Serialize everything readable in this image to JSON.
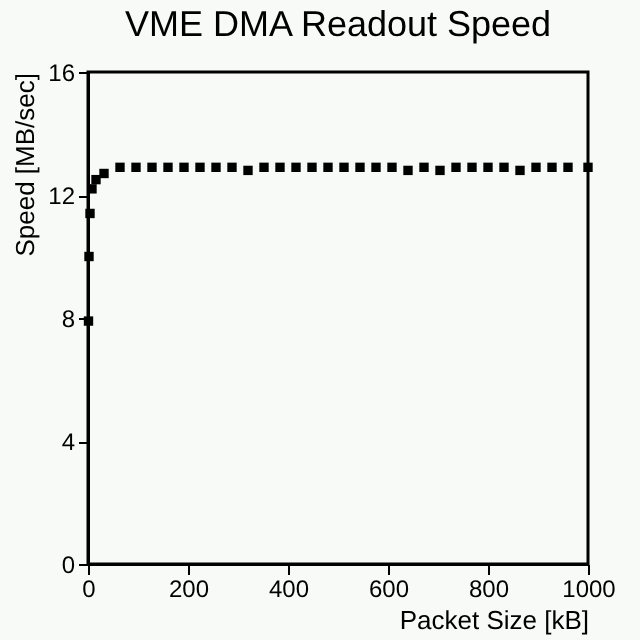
{
  "chart_data": {
    "type": "scatter",
    "title": "VME DMA Readout Speed",
    "xlabel": "Packet Size [kB]",
    "ylabel": "Speed [MB/sec]",
    "xlim": [
      0,
      1000
    ],
    "xticks": [
      0,
      200,
      400,
      600,
      800,
      1000
    ],
    "ylim": [
      0,
      16
    ],
    "yticks": [
      0,
      4,
      8,
      12,
      16
    ],
    "grid": false,
    "marker": "square",
    "series": [
      {
        "color": "#000000",
        "x": [
          1,
          2,
          4,
          8,
          16,
          32,
          64,
          96,
          128,
          160,
          192,
          224,
          256,
          288,
          320,
          352,
          384,
          416,
          448,
          480,
          512,
          544,
          576,
          608,
          640,
          672,
          704,
          736,
          768,
          800,
          832,
          864,
          896,
          928,
          960,
          1000
        ],
        "values": [
          7.9,
          10.0,
          11.4,
          12.2,
          12.5,
          12.7,
          12.9,
          12.9,
          12.9,
          12.9,
          12.9,
          12.9,
          12.9,
          12.9,
          12.8,
          12.9,
          12.9,
          12.9,
          12.9,
          12.9,
          12.9,
          12.9,
          12.9,
          12.9,
          12.8,
          12.9,
          12.8,
          12.9,
          12.9,
          12.9,
          12.9,
          12.8,
          12.9,
          12.9,
          12.9,
          12.9
        ]
      }
    ]
  }
}
